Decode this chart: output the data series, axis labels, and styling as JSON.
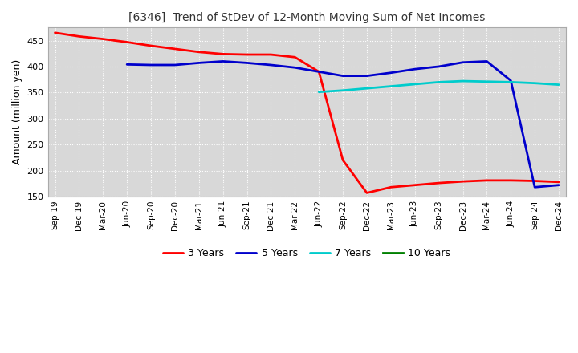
{
  "title": "[6346]  Trend of StDev of 12-Month Moving Sum of Net Incomes",
  "ylabel": "Amount (million yen)",
  "ylim": [
    150,
    475
  ],
  "yticks": [
    150,
    200,
    250,
    300,
    350,
    400,
    450
  ],
  "background_color": "#d8d8d8",
  "grid_color": "#ffffff",
  "x_labels": [
    "Sep-19",
    "Dec-19",
    "Mar-20",
    "Jun-20",
    "Sep-20",
    "Dec-20",
    "Mar-21",
    "Jun-21",
    "Sep-21",
    "Dec-21",
    "Mar-22",
    "Jun-22",
    "Sep-22",
    "Dec-22",
    "Mar-23",
    "Jun-23",
    "Sep-23",
    "Dec-23",
    "Mar-24",
    "Jun-24",
    "Sep-24",
    "Dec-24"
  ],
  "series_order": [
    "3 Years",
    "5 Years",
    "7 Years",
    "10 Years"
  ],
  "series": {
    "3 Years": {
      "color": "#ff0000",
      "values": [
        465,
        458,
        453,
        447,
        440,
        434,
        428,
        424,
        423,
        423,
        418,
        390,
        220,
        157,
        168,
        172,
        176,
        179,
        181,
        181,
        180,
        178
      ]
    },
    "5 Years": {
      "color": "#0000cc",
      "values": [
        null,
        null,
        null,
        404,
        403,
        403,
        407,
        410,
        407,
        403,
        398,
        390,
        382,
        382,
        388,
        395,
        400,
        408,
        410,
        373,
        168,
        172
      ]
    },
    "7 Years": {
      "color": "#00cccc",
      "values": [
        null,
        null,
        null,
        null,
        null,
        null,
        null,
        null,
        null,
        null,
        null,
        351,
        354,
        358,
        362,
        366,
        370,
        372,
        371,
        370,
        368,
        365
      ]
    },
    "10 Years": {
      "color": "#008000",
      "values": [
        null,
        null,
        null,
        null,
        null,
        null,
        null,
        null,
        null,
        null,
        null,
        null,
        null,
        null,
        null,
        null,
        null,
        null,
        null,
        null,
        null,
        null
      ]
    }
  }
}
